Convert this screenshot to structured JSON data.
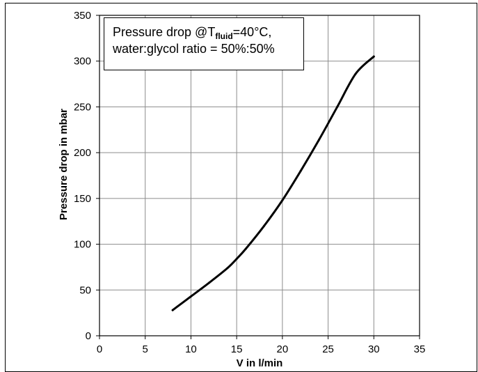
{
  "chart_data": {
    "type": "line",
    "title": "",
    "xlabel": "V in l/min",
    "ylabel": "Pressure drop in mbar",
    "xlim": [
      0,
      35
    ],
    "ylim": [
      0,
      350
    ],
    "x_ticks": [
      "0",
      "5",
      "10",
      "15",
      "20",
      "25",
      "30",
      "35"
    ],
    "y_ticks": [
      "0",
      "50",
      "100",
      "150",
      "200",
      "250",
      "300",
      "350"
    ],
    "grid": true,
    "annotation": {
      "line1_prefix": "Pressure drop @T",
      "line1_subscript": "fluid",
      "line1_suffix": "=40°C,",
      "line2": "water:glycol ratio = 50%:50%"
    },
    "series": [
      {
        "x": [
          8,
          10,
          12,
          14,
          15,
          16,
          18,
          20,
          22,
          24,
          26,
          28,
          30
        ],
        "y": [
          28,
          43,
          58,
          74,
          84,
          95,
          120,
          148,
          180,
          214,
          250,
          286,
          305
        ]
      }
    ]
  }
}
